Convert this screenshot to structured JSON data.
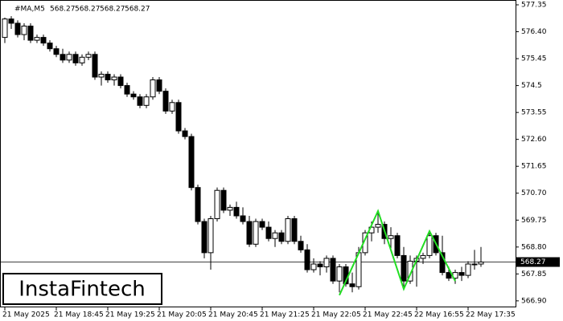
{
  "chart_data": {
    "type": "candlestick",
    "symbol": "#MA,M5",
    "header_values": [
      568.27,
      568.27,
      568.27,
      568.27
    ],
    "open": [
      576.2,
      576.85,
      576.7,
      576.3,
      576.6,
      576.1,
      576.2,
      576.0,
      575.8,
      575.6,
      575.4,
      575.6,
      575.3,
      575.5,
      575.6,
      574.8,
      574.9,
      574.7,
      574.8,
      574.5,
      574.2,
      574.1,
      573.8,
      574.1,
      574.7,
      574.3,
      573.6,
      573.9,
      572.9,
      572.7,
      570.9,
      569.7,
      568.6,
      569.8,
      570.8,
      570.1,
      570.2,
      569.9,
      569.7,
      568.9,
      569.7,
      569.5,
      569.1,
      569.3,
      569.0,
      569.8,
      569.0,
      568.7,
      568.0,
      568.2,
      568.1,
      568.4,
      567.6,
      568.1,
      567.5,
      567.4,
      568.6,
      569.3,
      569.5,
      569.6,
      569.1,
      569.2,
      568.5,
      567.6,
      568.3,
      568.4,
      568.5,
      569.2,
      568.6,
      567.9,
      567.7,
      567.9,
      567.8,
      568.2,
      568.2
    ],
    "high": [
      576.9,
      576.95,
      576.8,
      576.7,
      576.7,
      576.3,
      576.3,
      576.1,
      575.9,
      575.8,
      575.7,
      575.7,
      575.6,
      575.7,
      575.7,
      575.0,
      575.0,
      574.9,
      574.9,
      574.6,
      574.3,
      574.2,
      574.2,
      574.8,
      574.8,
      574.4,
      574.0,
      574.0,
      573.0,
      572.8,
      571.0,
      569.8,
      569.9,
      570.9,
      570.9,
      570.3,
      570.4,
      570.2,
      569.9,
      569.8,
      569.8,
      569.7,
      569.4,
      569.4,
      569.9,
      569.9,
      569.2,
      568.9,
      568.4,
      568.3,
      568.5,
      568.5,
      568.2,
      568.2,
      567.9,
      568.8,
      569.4,
      569.7,
      570.0,
      569.7,
      569.5,
      569.3,
      568.8,
      568.5,
      568.5,
      568.6,
      569.3,
      569.3,
      569.2,
      568.1,
      568.0,
      568.1,
      568.3,
      568.7,
      568.8
    ],
    "low": [
      576.0,
      576.5,
      576.2,
      576.1,
      576.0,
      576.0,
      575.9,
      575.7,
      575.5,
      575.3,
      575.3,
      575.2,
      575.2,
      575.4,
      574.7,
      574.5,
      574.6,
      574.5,
      574.4,
      574.1,
      574.0,
      573.7,
      573.7,
      574.0,
      574.2,
      573.5,
      573.5,
      572.8,
      572.6,
      570.8,
      569.6,
      568.4,
      568.0,
      569.7,
      570.0,
      569.9,
      569.8,
      569.6,
      568.8,
      568.8,
      569.4,
      569.0,
      568.8,
      568.9,
      568.9,
      568.9,
      568.6,
      567.9,
      567.9,
      567.8,
      567.9,
      567.5,
      567.2,
      567.4,
      567.2,
      567.3,
      568.5,
      569.0,
      569.3,
      568.9,
      568.7,
      568.4,
      567.4,
      567.5,
      567.4,
      568.2,
      568.4,
      568.5,
      567.8,
      567.6,
      567.5,
      567.6,
      567.7,
      568.0,
      568.1
    ],
    "close": [
      576.85,
      576.7,
      576.3,
      576.6,
      576.1,
      576.2,
      576.0,
      575.8,
      575.6,
      575.4,
      575.6,
      575.3,
      575.5,
      575.6,
      574.8,
      574.9,
      574.7,
      574.8,
      574.5,
      574.2,
      574.1,
      573.8,
      574.1,
      574.7,
      574.3,
      573.6,
      573.9,
      572.9,
      572.7,
      570.9,
      569.7,
      568.6,
      569.8,
      570.8,
      570.1,
      570.2,
      569.9,
      569.7,
      568.9,
      569.7,
      569.5,
      569.1,
      569.3,
      569.0,
      569.8,
      569.0,
      568.7,
      568.0,
      568.2,
      568.1,
      568.4,
      567.6,
      568.1,
      567.5,
      567.4,
      568.6,
      569.3,
      569.5,
      569.6,
      569.1,
      569.2,
      568.5,
      567.6,
      568.3,
      568.4,
      568.5,
      569.2,
      568.6,
      567.9,
      567.7,
      567.9,
      567.8,
      568.2,
      568.2,
      568.27
    ],
    "last_price": 568.27,
    "pattern_color": "#22dd22",
    "pattern_x": [
      52,
      58,
      62,
      66,
      70
    ],
    "pattern_values": [
      567.1,
      570.07,
      567.32,
      569.36,
      567.6
    ],
    "ylim": [
      566.67,
      577.52
    ],
    "yticks": [
      577.35,
      {
        "value": 576.4,
        "label": "576.40"
      },
      575.45,
      574.5,
      573.55,
      {
        "value": 572.6,
        "label": "572.60"
      },
      571.65,
      {
        "value": 570.7,
        "label": "570.70"
      },
      569.75,
      {
        "value": 568.8,
        "label": "568.80"
      },
      567.85,
      {
        "value": 566.9,
        "label": "566.90"
      }
    ],
    "xticks": [
      {
        "value": 0,
        "label": "21 May 2025"
      },
      {
        "value": 8,
        "label": "21 May 18:45"
      },
      {
        "value": 16,
        "label": "21 May 19:25"
      },
      {
        "value": 24,
        "label": "21 May 20:05"
      },
      {
        "value": 32,
        "label": "21 May 20:45"
      },
      {
        "value": 40,
        "label": "21 May 21:25"
      },
      {
        "value": 48,
        "label": "21 May 22:05"
      },
      {
        "value": 56,
        "label": "21 May 22:45"
      },
      {
        "value": 64,
        "label": "22 May 16:55"
      },
      {
        "value": 72,
        "label": "22 May 17:35"
      }
    ]
  },
  "brand": "InstaFintech"
}
